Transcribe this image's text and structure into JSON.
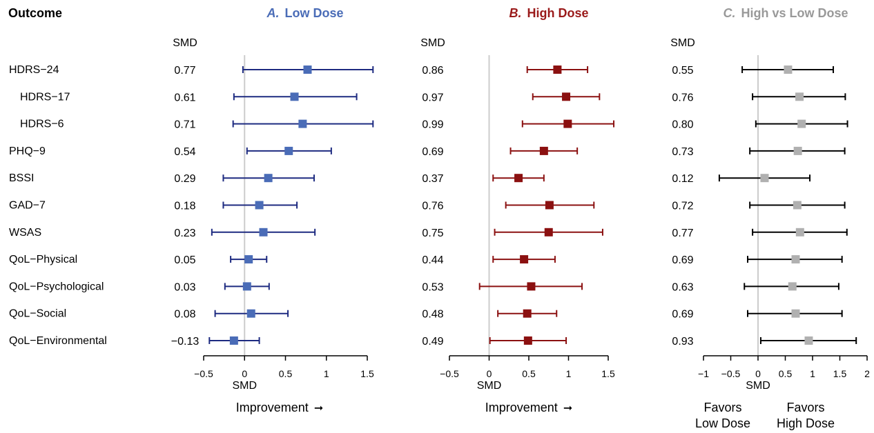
{
  "outcome_header": "Outcome",
  "outcomes": [
    {
      "label": "HDRS−24",
      "indent": false
    },
    {
      "label": "HDRS−17",
      "indent": true
    },
    {
      "label": "HDRS−6",
      "indent": true
    },
    {
      "label": "PHQ−9",
      "indent": false
    },
    {
      "label": "BSSI",
      "indent": false
    },
    {
      "label": "GAD−7",
      "indent": false
    },
    {
      "label": "WSAS",
      "indent": false
    },
    {
      "label": "QoL−Physical",
      "indent": false
    },
    {
      "label": "QoL−Psychological",
      "indent": false
    },
    {
      "label": "QoL−Social",
      "indent": false
    },
    {
      "label": "QoL−Environmental",
      "indent": false
    }
  ],
  "chart_data": [
    {
      "type": "forest",
      "panel_letter": "A.",
      "title": "Low Dose",
      "title_color": "#4a6cb7",
      "marker_color": "#4a6cb7",
      "line_color": "#1d2a80",
      "smd_header": "SMD",
      "xlabel": "SMD",
      "xlim": [
        -0.5,
        1.5
      ],
      "xticks": [
        -0.5,
        0,
        0.5,
        1,
        1.5
      ],
      "xtick_labels": [
        "−0.5",
        "0",
        "0.5",
        "1",
        "1.5"
      ],
      "reference_line": 0,
      "footer_label": "Improvement",
      "footer_arrow": "➞",
      "smd_labels": [
        "0.77",
        "0.61",
        "0.71",
        "0.54",
        "0.29",
        "0.18",
        "0.23",
        "0.05",
        "0.03",
        "0.08",
        "−0.13"
      ],
      "estimates": [
        0.77,
        0.61,
        0.71,
        0.54,
        0.29,
        0.18,
        0.23,
        0.05,
        0.03,
        0.08,
        -0.13
      ],
      "lower": [
        -0.02,
        -0.13,
        -0.14,
        0.03,
        -0.26,
        -0.26,
        -0.4,
        -0.17,
        -0.24,
        -0.36,
        -0.43
      ],
      "upper": [
        1.57,
        1.37,
        1.57,
        1.06,
        0.85,
        0.64,
        0.86,
        0.27,
        0.3,
        0.53,
        0.18
      ]
    },
    {
      "type": "forest",
      "panel_letter": "B.",
      "title": "High Dose",
      "title_color": "#9a1a1a",
      "marker_color": "#8b1010",
      "line_color": "#8b1010",
      "smd_header": "SMD",
      "xlabel": "SMD",
      "xlim": [
        -0.5,
        1.5
      ],
      "xticks": [
        -0.5,
        0,
        0.5,
        1,
        1.5
      ],
      "xtick_labels": [
        "−0.5",
        "0",
        "0.5",
        "1",
        "1.5"
      ],
      "reference_line": 0,
      "footer_label": "Improvement",
      "footer_arrow": "➞",
      "smd_labels": [
        "0.86",
        "0.97",
        "0.99",
        "0.69",
        "0.37",
        "0.76",
        "0.75",
        "0.44",
        "0.53",
        "0.48",
        "0.49"
      ],
      "estimates": [
        0.86,
        0.97,
        0.99,
        0.69,
        0.37,
        0.76,
        0.75,
        0.44,
        0.53,
        0.48,
        0.49
      ],
      "lower": [
        0.48,
        0.55,
        0.42,
        0.27,
        0.05,
        0.21,
        0.07,
        0.05,
        -0.12,
        0.11,
        0.01
      ],
      "upper": [
        1.24,
        1.39,
        1.57,
        1.11,
        0.69,
        1.32,
        1.43,
        0.83,
        1.17,
        0.85,
        0.97
      ]
    },
    {
      "type": "forest",
      "panel_letter": "C.",
      "title": "High vs Low Dose",
      "title_color": "#999999",
      "marker_color": "#b0b0b0",
      "line_color": "#000000",
      "smd_header": "SMD",
      "xlabel": "SMD",
      "xlim": [
        -1,
        2
      ],
      "xticks": [
        -1,
        -0.5,
        0,
        0.5,
        1,
        1.5,
        2
      ],
      "xtick_labels": [
        "−1",
        "−0.5",
        "0",
        "0.5",
        "1",
        "1.5",
        "2"
      ],
      "reference_line": 0,
      "footer_left": [
        "Favors",
        "Low Dose"
      ],
      "footer_right": [
        "Favors",
        "High Dose"
      ],
      "smd_labels": [
        "0.55",
        "0.76",
        "0.80",
        "0.73",
        "0.12",
        "0.72",
        "0.77",
        "0.69",
        "0.63",
        "0.69",
        "0.93"
      ],
      "estimates": [
        0.55,
        0.76,
        0.8,
        0.73,
        0.12,
        0.72,
        0.77,
        0.69,
        0.63,
        0.69,
        0.93
      ],
      "lower": [
        -0.29,
        -0.1,
        -0.04,
        -0.15,
        -0.71,
        -0.15,
        -0.1,
        -0.19,
        -0.25,
        -0.19,
        0.05
      ],
      "upper": [
        1.38,
        1.6,
        1.64,
        1.59,
        0.95,
        1.59,
        1.63,
        1.54,
        1.48,
        1.54,
        1.8
      ]
    }
  ]
}
